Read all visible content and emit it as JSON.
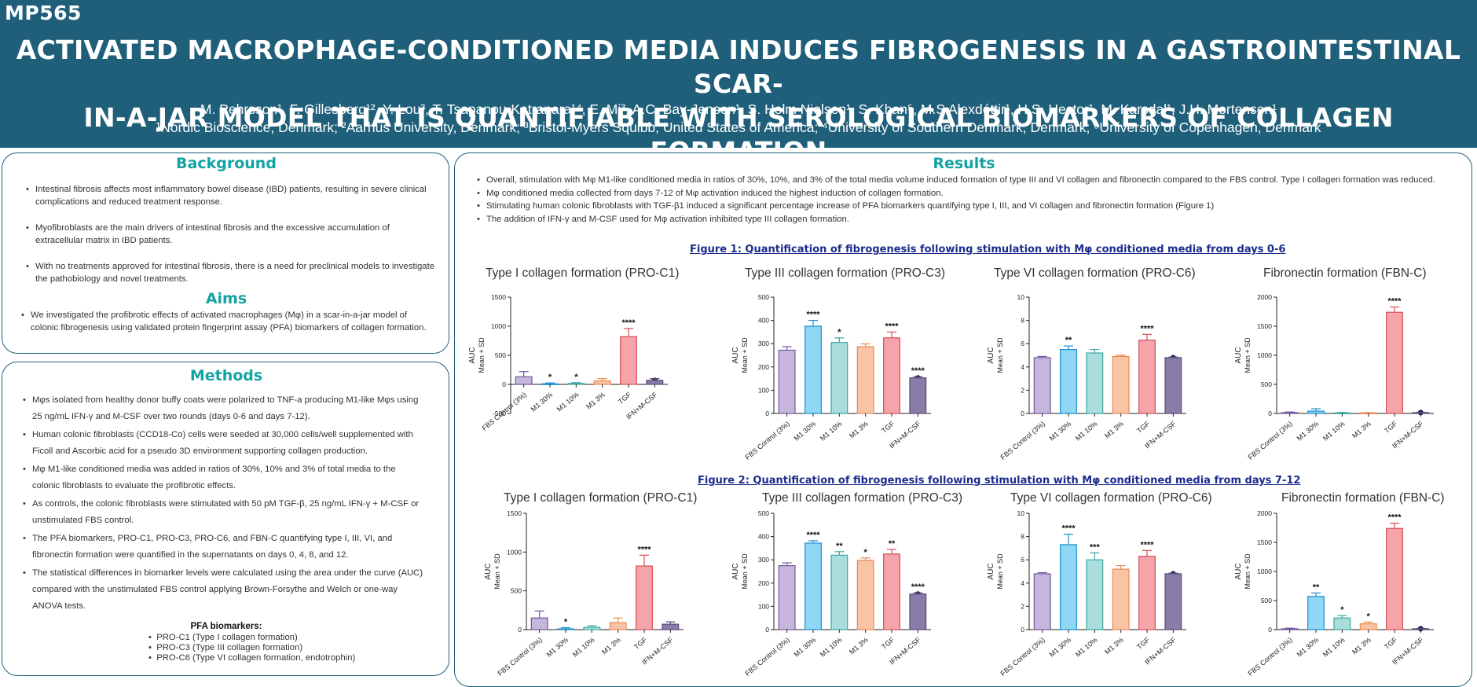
{
  "header": {
    "poster_id": "MP565",
    "title_line1": "ACTIVATED MACROPHAGE-CONDITIONED MEDIA INDUCES FIBROGENESIS IN A GASTROINTESTINAL SCAR-",
    "title_line2": "IN-A-JAR MODEL THAT IS QUANTIFIABLE WITH SEROLOGICAL BIOMARKERS OF COLLAGEN FORMATION",
    "authors": "M. Pehrsson¹, F. Gillesberg¹², Y. Lou³, T. Tsapanou-Katranara¹⁴, E. Mi³, A.C. Bay-Jensen¹, S. Holm Nielsen¹, S. Khan⁵, M.S Alexdóttir¹, H.S. Hector¹, M. Karsdal¹, J.H. Mortensen¹",
    "affiliations": "¹Nordic Bioscience, Denmark; ²Aarhus University, Denmark; ³Bristol-Myers Squibb, United States of America; ⁴University of Southern Denmark, Denmark; ⁵University of Copenhagen, Denmark"
  },
  "background": {
    "title": "Background",
    "bullets": [
      "Intestinal fibrosis affects most inflammatory bowel disease (IBD) patients, resulting in severe clinical complications and reduced treatment response.",
      "Myofibroblasts are the main drivers of intestinal fibrosis and the excessive accumulation of extracellular matrix in IBD patients.",
      "With no treatments approved for intestinal fibrosis, there is a need for preclinical models to investigate the pathobiology and novel treatments."
    ]
  },
  "aims": {
    "title": "Aims",
    "bullets": [
      "We investigated the profibrotic effects of activated macrophages (Mφ) in a scar-in-a-jar model of colonic fibrogenesis using validated protein fingerprint assay (PFA) biomarkers of collagen formation."
    ]
  },
  "methods": {
    "title": "Methods",
    "bullets": [
      "Mφs isolated from healthy donor buffy coats were polarized to TNF-a producing M1-like Mφs using 25 ng/mL IFN-γ and M-CSF over two rounds (days 0-6 and days 7-12).",
      "Human colonic fibroblasts (CCD18-Co) cells were seeded at 30,000 cells/well supplemented with Ficoll and Ascorbic acid for a pseudo 3D environment supporting collagen production.",
      "Mφ M1-like conditioned media was added in ratios of 30%, 10% and 3% of total media to the colonic fibroblasts to evaluate the profibrotic effects.",
      "As controls, the colonic fibroblasts were stimulated with 50 pM TGF-β, 25 ng/mL IFN-γ + M-CSF or unstimulated FBS control.",
      "The PFA biomarkers, PRO-C1, PRO-C3, PRO-C6, and FBN-C quantifying type I, III, VI, and fibronectin formation were quantified in the supernatants on days 0, 4, 8, and 12.",
      "The statistical differences in biomarker levels were calculated using the area under the curve (AUC) compared with the unstimulated FBS control applying Brown-Forsythe and Welch or one-way ANOVA tests."
    ],
    "pfa_title": "PFA biomarkers:",
    "pfa_items": [
      "PRO-C1 (Type I collagen formation)",
      "PRO-C3 (Type III collagen formation)",
      "PRO-C6 (Type VI collagen formation, endotrophin)"
    ]
  },
  "results": {
    "title": "Results",
    "bullets": [
      "Overall, stimulation with Mφ M1-like conditioned media in ratios of 30%, 10%, and 3% of the total media volume induced formation of type III and VI collagen and fibronectin compared to the FBS control. Type I collagen formation was reduced.",
      "Mφ conditioned media collected from days 7-12 of Mφ activation induced the highest induction of collagen formation.",
      "Stimulating human colonic fibroblasts with TGF-β1 induced a significant percentage increase of PFA biomarkers quantifying type I, III, and VI collagen and fibronectin formation (Figure 1)",
      "The addition of IFN-γ and M-CSF used for Mφ activation inhibited type III collagen formation."
    ],
    "figure1_caption": "Figure 1: Quantification of fibrogenesis following stimulation with Mφ conditioned media from days 0-6",
    "figure2_caption": "Figure 2: Quantification of fibrogenesis following stimulation with Mφ conditioned media from days 7-12"
  },
  "chart_style": {
    "colors": [
      "#c7b6dc",
      "#8fd7f5",
      "#a9dedc",
      "#f9c4a5",
      "#f5a4a9",
      "#8a7ca8"
    ],
    "edges": [
      "#6f57a0",
      "#1a8fd0",
      "#3aa7a0",
      "#e98a4f",
      "#d84d58",
      "#5a4a7a"
    ],
    "marker_color": "#1e1a4a"
  },
  "chart_data": [
    {
      "type": "bar",
      "figure": 1,
      "title": "Type I collagen formation (PRO-C1)",
      "ylabel": "AUC",
      "ylabel2": "Mean + SD",
      "categories": [
        "FBS Control (3%)",
        "M1 30%",
        "M1 10%",
        "M1 3%",
        "TGF",
        "IFN+M-CSF"
      ],
      "values": [
        130,
        10,
        15,
        60,
        820,
        70
      ],
      "errors": [
        90,
        15,
        15,
        40,
        140,
        30
      ],
      "stars": [
        "",
        "*",
        "*",
        "",
        "****",
        ""
      ],
      "ylim": [
        -500,
        1500
      ],
      "ticks": [
        -500,
        0,
        500,
        1000,
        1500
      ],
      "last_is_marker": true
    },
    {
      "type": "bar",
      "figure": 1,
      "title": "Type III collagen formation (PRO-C3)",
      "ylabel": "AUC",
      "ylabel2": "Mean + SD",
      "categories": [
        "FBS Control (3%)",
        "M1 30%",
        "M1 10%",
        "M1 3%",
        "TGF",
        "IFN+M-CSF"
      ],
      "values": [
        272,
        375,
        305,
        287,
        325,
        153
      ],
      "errors": [
        15,
        25,
        20,
        12,
        25,
        5
      ],
      "stars": [
        "",
        "****",
        "*",
        "",
        "****",
        "****"
      ],
      "ylim": [
        0,
        500
      ],
      "ticks": [
        0,
        100,
        200,
        300,
        400,
        500
      ],
      "last_is_marker": true
    },
    {
      "type": "bar",
      "figure": 1,
      "title": "Type VI collagen formation (PRO-C6)",
      "ylabel": "AUC",
      "ylabel2": "Mean + SD",
      "categories": [
        "FBS Control (3%)",
        "M1 30%",
        "M1 10%",
        "M1 3%",
        "TGF",
        "IFN+M-CSF"
      ],
      "values": [
        4.8,
        5.5,
        5.2,
        4.9,
        6.3,
        4.8
      ],
      "errors": [
        0.1,
        0.3,
        0.3,
        0.1,
        0.5,
        0.05
      ],
      "stars": [
        "",
        "**",
        "",
        "",
        "****",
        ""
      ],
      "ylim": [
        0,
        10
      ],
      "ticks": [
        0,
        2,
        4,
        6,
        8,
        10
      ],
      "last_is_marker": true
    },
    {
      "type": "bar",
      "figure": 1,
      "title": "Fibronectin formation (FBN-C)",
      "ylabel": "AUC",
      "ylabel2": "Mean + SD",
      "categories": [
        "FBS Control (3%)",
        "M1 30%",
        "M1 10%",
        "M1 3%",
        "TGF",
        "IFN+M-CSF"
      ],
      "values": [
        15,
        40,
        10,
        10,
        1740,
        15
      ],
      "errors": [
        10,
        40,
        8,
        5,
        90,
        5
      ],
      "stars": [
        "",
        "",
        "",
        "",
        "****",
        ""
      ],
      "ylim": [
        0,
        2000
      ],
      "ticks": [
        0,
        500,
        1000,
        1500,
        2000
      ],
      "last_is_marker": true
    },
    {
      "type": "bar",
      "figure": 2,
      "title": "Type I collagen formation (PRO-C1)",
      "ylabel": "AUC",
      "ylabel2": "Mean + SD",
      "categories": [
        "FBS Control (3%)",
        "M1 30%",
        "M1 10%",
        "M1 3%",
        "TGF",
        "IFN+M-CSF"
      ],
      "values": [
        150,
        10,
        30,
        90,
        820,
        70
      ],
      "errors": [
        90,
        15,
        20,
        60,
        140,
        30
      ],
      "stars": [
        "",
        "*",
        "",
        "",
        "****",
        ""
      ],
      "ylim": [
        0,
        1500
      ],
      "ticks": [
        0,
        500,
        1000,
        1500
      ],
      "last_is_marker": false
    },
    {
      "type": "bar",
      "figure": 2,
      "title": "Type III collagen formation (PRO-C3)",
      "ylabel": "AUC",
      "ylabel2": "Mean + SD",
      "categories": [
        "FBS Control (3%)",
        "M1 30%",
        "M1 10%",
        "M1 3%",
        "TGF",
        "IFN+M-CSF"
      ],
      "values": [
        275,
        372,
        320,
        298,
        325,
        153
      ],
      "errors": [
        12,
        10,
        15,
        10,
        20,
        5
      ],
      "stars": [
        "",
        "****",
        "**",
        "*",
        "**",
        "****"
      ],
      "ylim": [
        0,
        500
      ],
      "ticks": [
        0,
        100,
        200,
        300,
        400,
        500
      ],
      "last_is_marker": true
    },
    {
      "type": "bar",
      "figure": 2,
      "title": "Type VI collagen formation (PRO-C6)",
      "ylabel": "AUC",
      "ylabel2": "Mean + SD",
      "categories": [
        "FBS Control (3%)",
        "M1 30%",
        "M1 10%",
        "M1 3%",
        "TGF",
        "IFN+M-CSF"
      ],
      "values": [
        4.8,
        7.3,
        6.0,
        5.2,
        6.3,
        4.8
      ],
      "errors": [
        0.1,
        0.9,
        0.6,
        0.3,
        0.5,
        0.05
      ],
      "stars": [
        "",
        "****",
        "***",
        "",
        "****",
        ""
      ],
      "ylim": [
        0,
        10
      ],
      "ticks": [
        0,
        2,
        4,
        6,
        8,
        10
      ],
      "last_is_marker": true
    },
    {
      "type": "bar",
      "figure": 2,
      "title": "Fibronectin formation (FBN-C)",
      "ylabel": "AUC",
      "ylabel2": "Mean + SD",
      "categories": [
        "FBS Control (3%)",
        "M1 30%",
        "M1 10%",
        "M1 3%",
        "TGF",
        "IFN+M-CSF"
      ],
      "values": [
        15,
        570,
        200,
        100,
        1740,
        15
      ],
      "errors": [
        10,
        60,
        40,
        30,
        90,
        5
      ],
      "stars": [
        "",
        "**",
        "*",
        "*",
        "****",
        ""
      ],
      "ylim": [
        0,
        2000
      ],
      "ticks": [
        0,
        500,
        1000,
        1500,
        2000
      ],
      "last_is_marker": true
    }
  ]
}
